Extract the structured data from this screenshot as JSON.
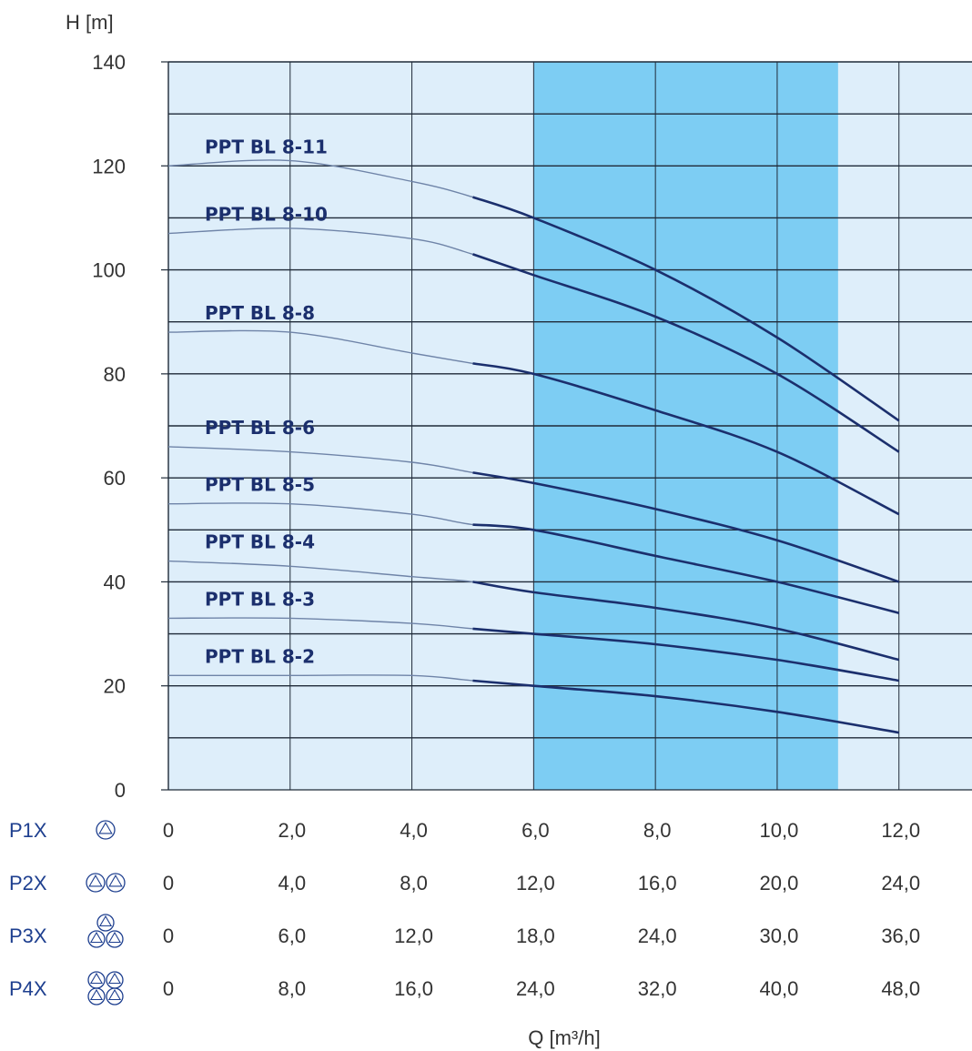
{
  "colors": {
    "plot_bg": "#deeefa",
    "highlight_band": "#7dcdf3",
    "grid_line": "#1f2a38",
    "curve_thin": "#6f84a8",
    "curve_thick": "#1b2f6d",
    "row_icon": "#1e3f8f"
  },
  "chart_data": {
    "type": "line",
    "title": "",
    "ylabel": "H [m]",
    "xlabel": "Q [m³/h]",
    "xlim": [
      0,
      13.2
    ],
    "ylim": [
      0,
      140
    ],
    "y_ticks": [
      0,
      20,
      40,
      60,
      80,
      100,
      120,
      140
    ],
    "y_tick_labels": [
      "0",
      "20",
      "40",
      "60",
      "80",
      "100",
      "120",
      "140"
    ],
    "y_gridlines": [
      10,
      20,
      30,
      40,
      50,
      60,
      70,
      80,
      90,
      100,
      110,
      120,
      130,
      140
    ],
    "x_gridlines": [
      2,
      4,
      6,
      8,
      10,
      12
    ],
    "grid": true,
    "highlight_range": [
      6,
      11
    ],
    "x_tick_positions": [
      0,
      2,
      4,
      6,
      8,
      10,
      12
    ],
    "x_rows": [
      {
        "label": "P1X",
        "icon": "single-pump-icon",
        "ticks": [
          "0",
          "2,0",
          "4,0",
          "6,0",
          "8,0",
          "10,0",
          "12,0"
        ]
      },
      {
        "label": "P2X",
        "icon": "double-pump-icon",
        "ticks": [
          "0",
          "4,0",
          "8,0",
          "12,0",
          "16,0",
          "20,0",
          "24,0"
        ]
      },
      {
        "label": "P3X",
        "icon": "triple-pump-icon",
        "ticks": [
          "0",
          "6,0",
          "12,0",
          "18,0",
          "24,0",
          "30,0",
          "36,0"
        ]
      },
      {
        "label": "P4X",
        "icon": "quad-pump-icon",
        "ticks": [
          "0",
          "8,0",
          "16,0",
          "24,0",
          "32,0",
          "40,0",
          "48,0"
        ]
      }
    ],
    "recommended_range_start": 5,
    "series": [
      {
        "name": "PPT BL 8-11",
        "x": [
          0,
          2,
          4,
          5,
          6,
          8,
          10,
          12
        ],
        "y": [
          120,
          121,
          117,
          114,
          110,
          100,
          87,
          71
        ]
      },
      {
        "name": "PPT BL 8-10",
        "x": [
          0,
          2,
          4,
          5,
          6,
          8,
          10,
          12
        ],
        "y": [
          107,
          108,
          106,
          103,
          99,
          91,
          80,
          65
        ]
      },
      {
        "name": "PPT BL 8-8",
        "x": [
          0,
          2,
          4,
          5,
          6,
          8,
          10,
          12
        ],
        "y": [
          88,
          88,
          84,
          82,
          80,
          73,
          65,
          53
        ]
      },
      {
        "name": "PPT BL 8-6",
        "x": [
          0,
          2,
          4,
          5,
          6,
          8,
          10,
          12
        ],
        "y": [
          66,
          65,
          63,
          61,
          59,
          54,
          48,
          40
        ]
      },
      {
        "name": "PPT BL 8-5",
        "x": [
          0,
          2,
          4,
          5,
          6,
          8,
          10,
          12
        ],
        "y": [
          55,
          55,
          53,
          51,
          50,
          45,
          40,
          34
        ]
      },
      {
        "name": "PPT BL 8-4",
        "x": [
          0,
          2,
          4,
          5,
          6,
          8,
          10,
          12
        ],
        "y": [
          44,
          43,
          41,
          40,
          38,
          35,
          31,
          25
        ]
      },
      {
        "name": "PPT BL 8-3",
        "x": [
          0,
          2,
          4,
          5,
          6,
          8,
          10,
          12
        ],
        "y": [
          33,
          33,
          32,
          31,
          30,
          28,
          25,
          21
        ]
      },
      {
        "name": "PPT BL 8-2",
        "x": [
          0,
          2,
          4,
          5,
          6,
          8,
          10,
          12
        ],
        "y": [
          22,
          22,
          22,
          21,
          20,
          18,
          15,
          11
        ]
      }
    ]
  }
}
